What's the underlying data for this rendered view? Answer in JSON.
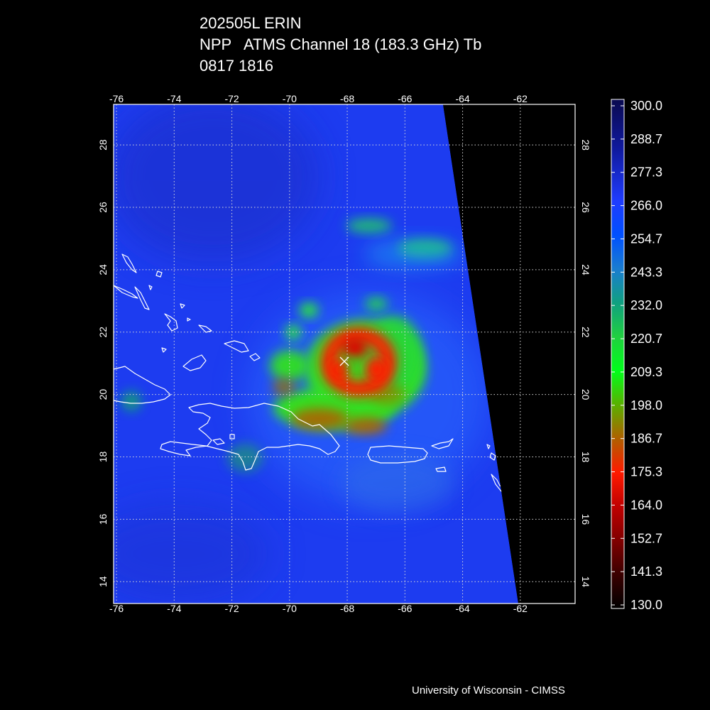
{
  "title": {
    "line1": "202505L ERIN",
    "line2": "NPP   ATMS Channel 18 (183.3 GHz) Tb",
    "line3": "0817 1816"
  },
  "credit": "University of Wisconsin - CIMSS",
  "map": {
    "lon_range": [
      -76.1,
      -60.1
    ],
    "lat_range": [
      13.3,
      29.3
    ],
    "lon_ticks": [
      {
        "value": -76,
        "label": "-76"
      },
      {
        "value": -74,
        "label": "-74"
      },
      {
        "value": -72,
        "label": "-72"
      },
      {
        "value": -70,
        "label": "-70"
      },
      {
        "value": -68,
        "label": "-68"
      },
      {
        "value": -66,
        "label": "-66"
      },
      {
        "value": -64,
        "label": "-64"
      },
      {
        "value": -62,
        "label": "-62"
      }
    ],
    "lat_ticks": [
      {
        "value": 14,
        "label": "14"
      },
      {
        "value": 16,
        "label": "16"
      },
      {
        "value": 18,
        "label": "18"
      },
      {
        "value": 20,
        "label": "20"
      },
      {
        "value": 22,
        "label": "22"
      },
      {
        "value": 24,
        "label": "24"
      },
      {
        "value": 26,
        "label": "26"
      },
      {
        "value": 28,
        "label": "28"
      }
    ],
    "storm_center": {
      "lon": -68.0,
      "lat": 21.2
    },
    "swath_edge": [
      {
        "lon": -64.7,
        "lat": 29.3
      },
      {
        "lon": -62.1,
        "lat": 13.3
      }
    ],
    "grid": true
  },
  "colorbar": {
    "unit": "Tb",
    "labels": [
      "300.0",
      "288.7",
      "277.3",
      "266.0",
      "254.7",
      "243.3",
      "232.0",
      "220.7",
      "209.3",
      "198.0",
      "186.7",
      "175.3",
      "164.0",
      "152.7",
      "141.3",
      "130.0"
    ],
    "stops": [
      {
        "value": 300.0,
        "color": "#0a0a50"
      },
      {
        "value": 283.0,
        "color": "#101aa0"
      },
      {
        "value": 266.0,
        "color": "#1f3cff"
      },
      {
        "value": 254.7,
        "color": "#0050ff"
      },
      {
        "value": 243.3,
        "color": "#1a7dd0"
      },
      {
        "value": 232.0,
        "color": "#10a080"
      },
      {
        "value": 220.7,
        "color": "#20d040"
      },
      {
        "value": 209.3,
        "color": "#00ff1a"
      },
      {
        "value": 198.0,
        "color": "#5ab000"
      },
      {
        "value": 186.7,
        "color": "#b06000"
      },
      {
        "value": 175.3,
        "color": "#ff1a00"
      },
      {
        "value": 164.0,
        "color": "#c00000"
      },
      {
        "value": 152.7,
        "color": "#800000"
      },
      {
        "value": 141.3,
        "color": "#3a0000"
      },
      {
        "value": 130.0,
        "color": "#000000"
      }
    ]
  },
  "colors": {
    "background": "#000000",
    "field_base": "#1d3cf0",
    "coastline": "#ffffff",
    "grid": "#d8d8d8"
  }
}
